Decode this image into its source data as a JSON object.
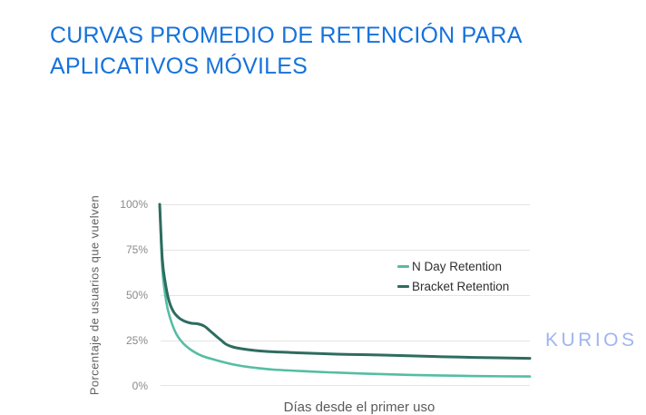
{
  "slide": {
    "title": "CURVAS PROMEDIO DE RETENCIÓN PARA APLICATIVOS MÓVILES",
    "title_color": "#1572DB"
  },
  "chart_data": {
    "type": "line",
    "title": "",
    "xlabel": "Días desde el primer uso",
    "ylabel": "Porcentaje de usuarios que vuelven",
    "xlim": [
      0,
      100
    ],
    "ylim": [
      0,
      100
    ],
    "grid": "horizontal",
    "legend_position": "inside-center-right",
    "y_axis": {
      "tick_labels": [
        "100%",
        "75%",
        "50%",
        "25%",
        "0%"
      ],
      "tick_values": [
        100,
        75,
        50,
        25,
        0
      ]
    },
    "x_axis": {
      "tick_labels": []
    },
    "series": [
      {
        "name": "N Day Retention",
        "color": "#55BDA3",
        "points": [
          [
            0,
            100
          ],
          [
            0.7,
            65
          ],
          [
            1.5,
            50
          ],
          [
            2.2,
            42
          ],
          [
            3.2,
            35
          ],
          [
            4.4,
            29
          ],
          [
            5.7,
            25
          ],
          [
            7.1,
            22
          ],
          [
            9.1,
            19
          ],
          [
            11.5,
            16.5
          ],
          [
            14.7,
            14.5
          ],
          [
            18.4,
            12.5
          ],
          [
            22.1,
            11
          ],
          [
            25.8,
            10
          ],
          [
            30.7,
            9
          ],
          [
            38.1,
            8.2
          ],
          [
            45.5,
            7.5
          ],
          [
            55.3,
            6.8
          ],
          [
            65.1,
            6.2
          ],
          [
            74.9,
            5.8
          ],
          [
            87.2,
            5.4
          ],
          [
            100,
            5.2
          ]
        ]
      },
      {
        "name": "Bracket Retention",
        "color": "#2E6C60",
        "points": [
          [
            0,
            100
          ],
          [
            0.7,
            70
          ],
          [
            1.5,
            57
          ],
          [
            2.5,
            47
          ],
          [
            3.7,
            41
          ],
          [
            5.2,
            37.5
          ],
          [
            6.9,
            35.5
          ],
          [
            8.6,
            34.5
          ],
          [
            10.3,
            34.2
          ],
          [
            12,
            33
          ],
          [
            13.5,
            30.5
          ],
          [
            15.2,
            27.5
          ],
          [
            16.7,
            25
          ],
          [
            17.9,
            23
          ],
          [
            19.7,
            21.5
          ],
          [
            22.1,
            20.5
          ],
          [
            25.8,
            19.5
          ],
          [
            30.7,
            18.8
          ],
          [
            38.1,
            18.2
          ],
          [
            47.9,
            17.5
          ],
          [
            60.2,
            17
          ],
          [
            72.5,
            16.3
          ],
          [
            84.8,
            15.7
          ],
          [
            100,
            15.2
          ]
        ]
      }
    ]
  },
  "footer": {
    "logo": "KURIOS",
    "logo_color": "#9FB5F1"
  }
}
